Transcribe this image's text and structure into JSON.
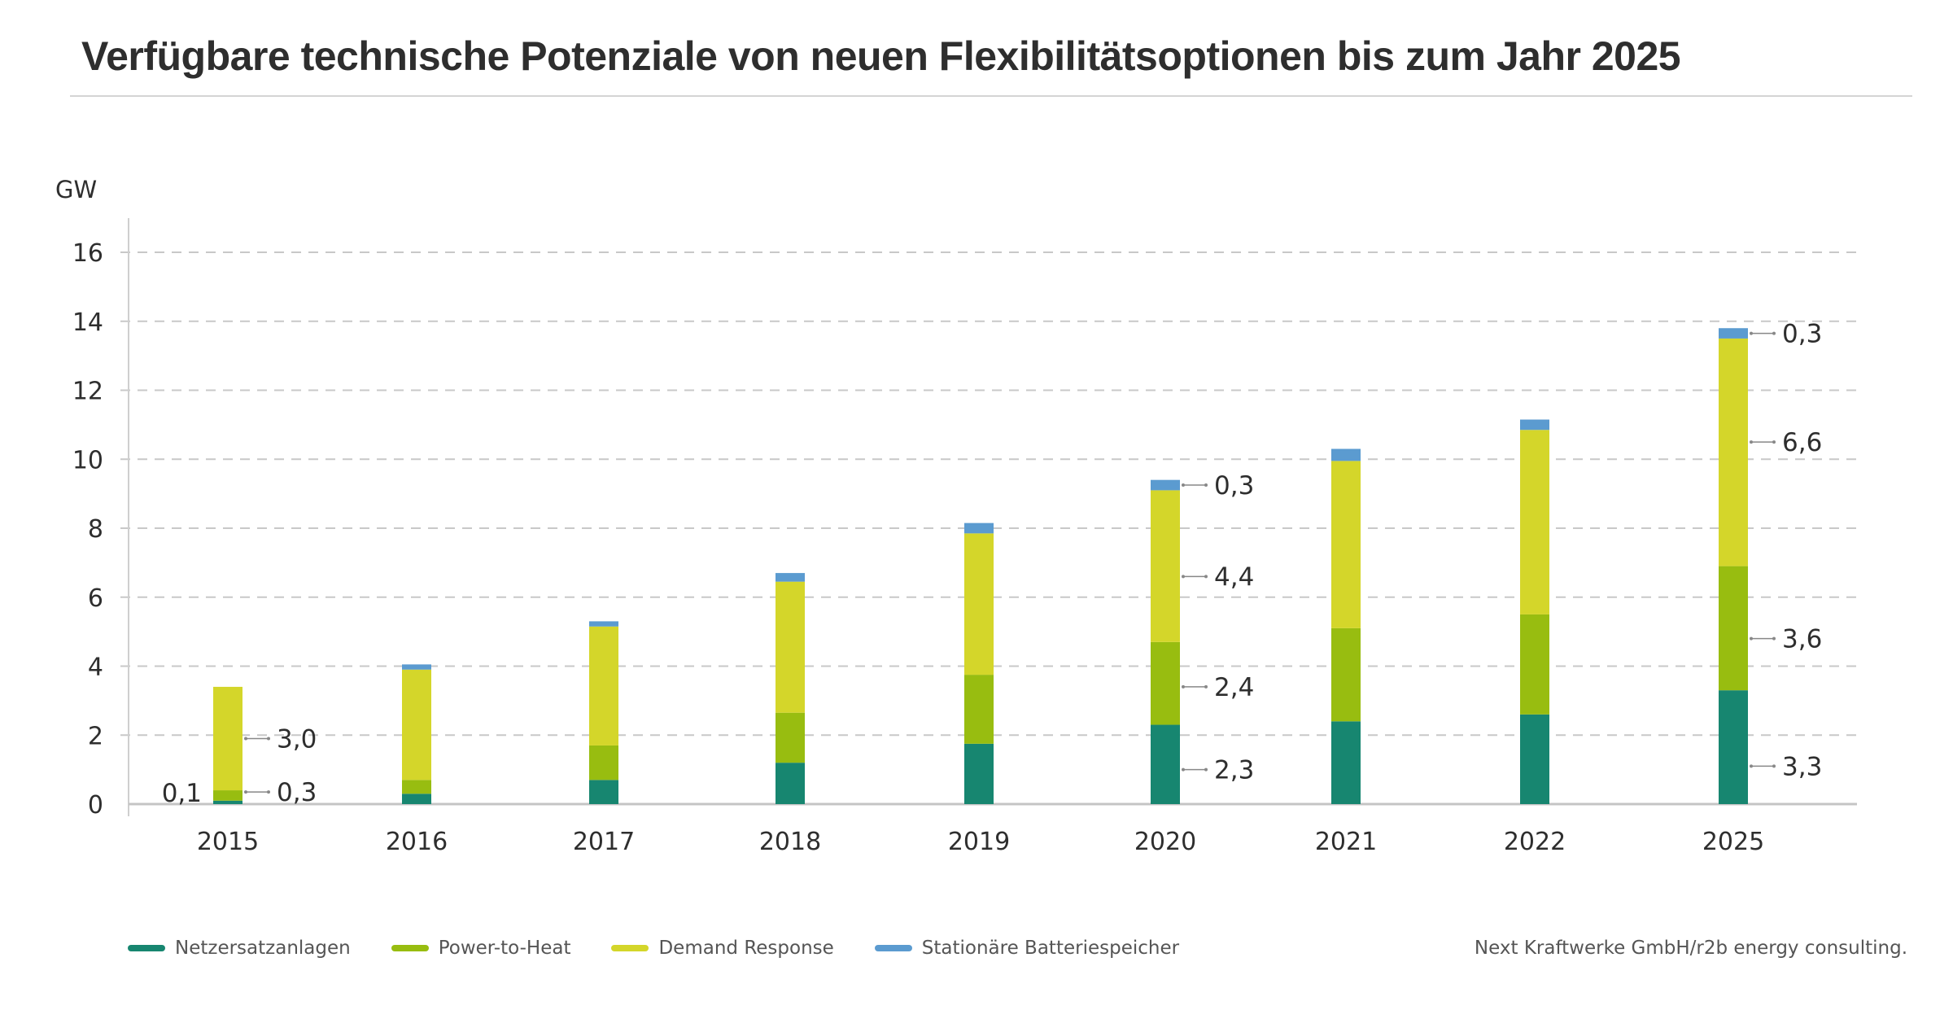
{
  "header": {
    "title": "Verfügbare technische Potenziale von neuen Flexibilitätsoptionen bis zum Jahr 2025"
  },
  "source": "Next Kraftwerke GmbH/r2b energy consulting.",
  "chart_data": {
    "type": "bar",
    "stacked": true,
    "title": "Verfügbare technische Potenziale von neuen Flexibilitätsoptionen bis zum Jahr 2025",
    "xlabel": "",
    "ylabel": "GW",
    "ylim": [
      0,
      16
    ],
    "yticks": [
      0,
      2,
      4,
      6,
      8,
      10,
      12,
      14,
      16
    ],
    "grid": true,
    "legend_position": "bottom-left",
    "categories": [
      "2015",
      "2016",
      "2017",
      "2018",
      "2019",
      "2020",
      "2021",
      "2022",
      "2025"
    ],
    "series": [
      {
        "name": "Netzersatzanlagen",
        "color": "#178670",
        "values": [
          0.1,
          0.3,
          0.7,
          1.2,
          1.75,
          2.3,
          2.4,
          2.6,
          3.3
        ]
      },
      {
        "name": "Power-to-Heat",
        "color": "#98bd10",
        "values": [
          0.3,
          0.4,
          1.0,
          1.45,
          2.0,
          2.4,
          2.7,
          2.9,
          3.6
        ]
      },
      {
        "name": "Demand Response",
        "color": "#d4d62a",
        "values": [
          3.0,
          3.2,
          3.45,
          3.8,
          4.1,
          4.4,
          4.85,
          5.35,
          6.6
        ]
      },
      {
        "name": "Stationäre Batteriespeicher",
        "color": "#5b9bd0",
        "values": [
          0.0,
          0.15,
          0.15,
          0.25,
          0.3,
          0.3,
          0.35,
          0.3,
          0.3
        ]
      }
    ],
    "data_labels": [
      {
        "category": "2015",
        "series": "Netzersatzanlagen",
        "text": "0,1",
        "side": "left"
      },
      {
        "category": "2015",
        "series": "Power-to-Heat",
        "text": "0,3",
        "side": "right"
      },
      {
        "category": "2015",
        "series": "Demand Response",
        "text": "3,0",
        "side": "right"
      },
      {
        "category": "2020",
        "series": "Netzersatzanlagen",
        "text": "2,3",
        "side": "right"
      },
      {
        "category": "2020",
        "series": "Power-to-Heat",
        "text": "2,4",
        "side": "right"
      },
      {
        "category": "2020",
        "series": "Demand Response",
        "text": "4,4",
        "side": "right"
      },
      {
        "category": "2020",
        "series": "Stationäre Batteriespeicher",
        "text": "0,3",
        "side": "right"
      },
      {
        "category": "2025",
        "series": "Netzersatzanlagen",
        "text": "3,3",
        "side": "right"
      },
      {
        "category": "2025",
        "series": "Power-to-Heat",
        "text": "3,6",
        "side": "right"
      },
      {
        "category": "2025",
        "series": "Demand Response",
        "text": "6,6",
        "side": "right"
      },
      {
        "category": "2025",
        "series": "Stationäre Batteriespeicher",
        "text": "0,3",
        "side": "right"
      }
    ]
  }
}
